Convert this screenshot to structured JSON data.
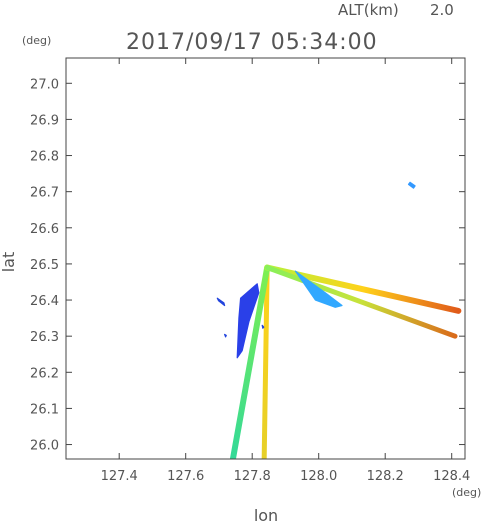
{
  "header": {
    "altitude_label": "ALT(km)",
    "altitude_value": "2.0",
    "timestamp": "2017/09/17 05:34:00"
  },
  "chart_data": {
    "type": "scatter",
    "title": "2017/09/17 05:34:00",
    "xlabel": "lon",
    "ylabel": "lat",
    "x_unit": "(deg)",
    "y_unit": "(deg)",
    "xlim": [
      127.24,
      128.44
    ],
    "ylim": [
      25.96,
      27.07
    ],
    "x_ticks": [
      127.4,
      127.6,
      127.8,
      128.0,
      128.2,
      128.4
    ],
    "x_tick_labels": [
      "127.4",
      "127.6",
      "127.8",
      "128.0",
      "128.2",
      "128.4"
    ],
    "y_ticks": [
      26.0,
      26.1,
      26.2,
      26.3,
      26.4,
      26.5,
      26.6,
      26.7,
      26.8,
      26.9,
      27.0
    ],
    "y_tick_labels": [
      "26.0",
      "26.1",
      "26.2",
      "26.3",
      "26.4",
      "26.5",
      "26.6",
      "26.7",
      "26.8",
      "26.9",
      "27.0"
    ],
    "grid": false,
    "origin": [
      127.845,
      26.49
    ],
    "spokes": [
      {
        "colors": [
          "#ffd21a",
          "#e6d028"
        ],
        "width": 5,
        "end": [
          127.836,
          25.96
        ]
      },
      {
        "colors": [
          "#7ff050",
          "#33d998"
        ],
        "width": 6,
        "end": [
          127.742,
          25.96
        ]
      },
      {
        "colors": [
          "#b6f23c",
          "#ffd21a",
          "#e05a1a"
        ],
        "width": 6,
        "end": [
          128.42,
          26.37
        ]
      },
      {
        "colors": [
          "#88f05a",
          "#c8e23a",
          "#d96a1a"
        ],
        "width": 5,
        "end": [
          128.41,
          26.3
        ]
      }
    ],
    "echoes": [
      {
        "color": "#3399ff",
        "points": [
          [
            128.275,
            26.726
          ],
          [
            128.29,
            26.716
          ],
          [
            128.285,
            26.71
          ],
          [
            128.27,
            26.72
          ]
        ]
      },
      {
        "color": "#2a40e8",
        "points": [
          [
            127.765,
            26.405
          ],
          [
            127.815,
            26.445
          ],
          [
            127.82,
            26.42
          ],
          [
            127.79,
            26.34
          ],
          [
            127.77,
            26.26
          ],
          [
            127.755,
            26.24
          ],
          [
            127.76,
            26.35
          ]
        ]
      },
      {
        "color": "#31a8ff",
        "points": [
          [
            127.93,
            26.48
          ],
          [
            128.02,
            26.42
          ],
          [
            128.07,
            26.385
          ],
          [
            128.05,
            26.38
          ],
          [
            127.99,
            26.4
          ]
        ]
      },
      {
        "color": "#2244dd",
        "points": [
          [
            127.695,
            26.405
          ],
          [
            127.715,
            26.392
          ],
          [
            127.717,
            26.385
          ],
          [
            127.699,
            26.398
          ]
        ]
      },
      {
        "color": "#2244dd",
        "points": [
          [
            127.717,
            26.305
          ],
          [
            127.722,
            26.302
          ],
          [
            127.72,
            26.298
          ]
        ]
      },
      {
        "color": "#2244dd",
        "points": [
          [
            127.83,
            26.33
          ],
          [
            127.835,
            26.325
          ],
          [
            127.832,
            26.322
          ]
        ]
      }
    ]
  }
}
